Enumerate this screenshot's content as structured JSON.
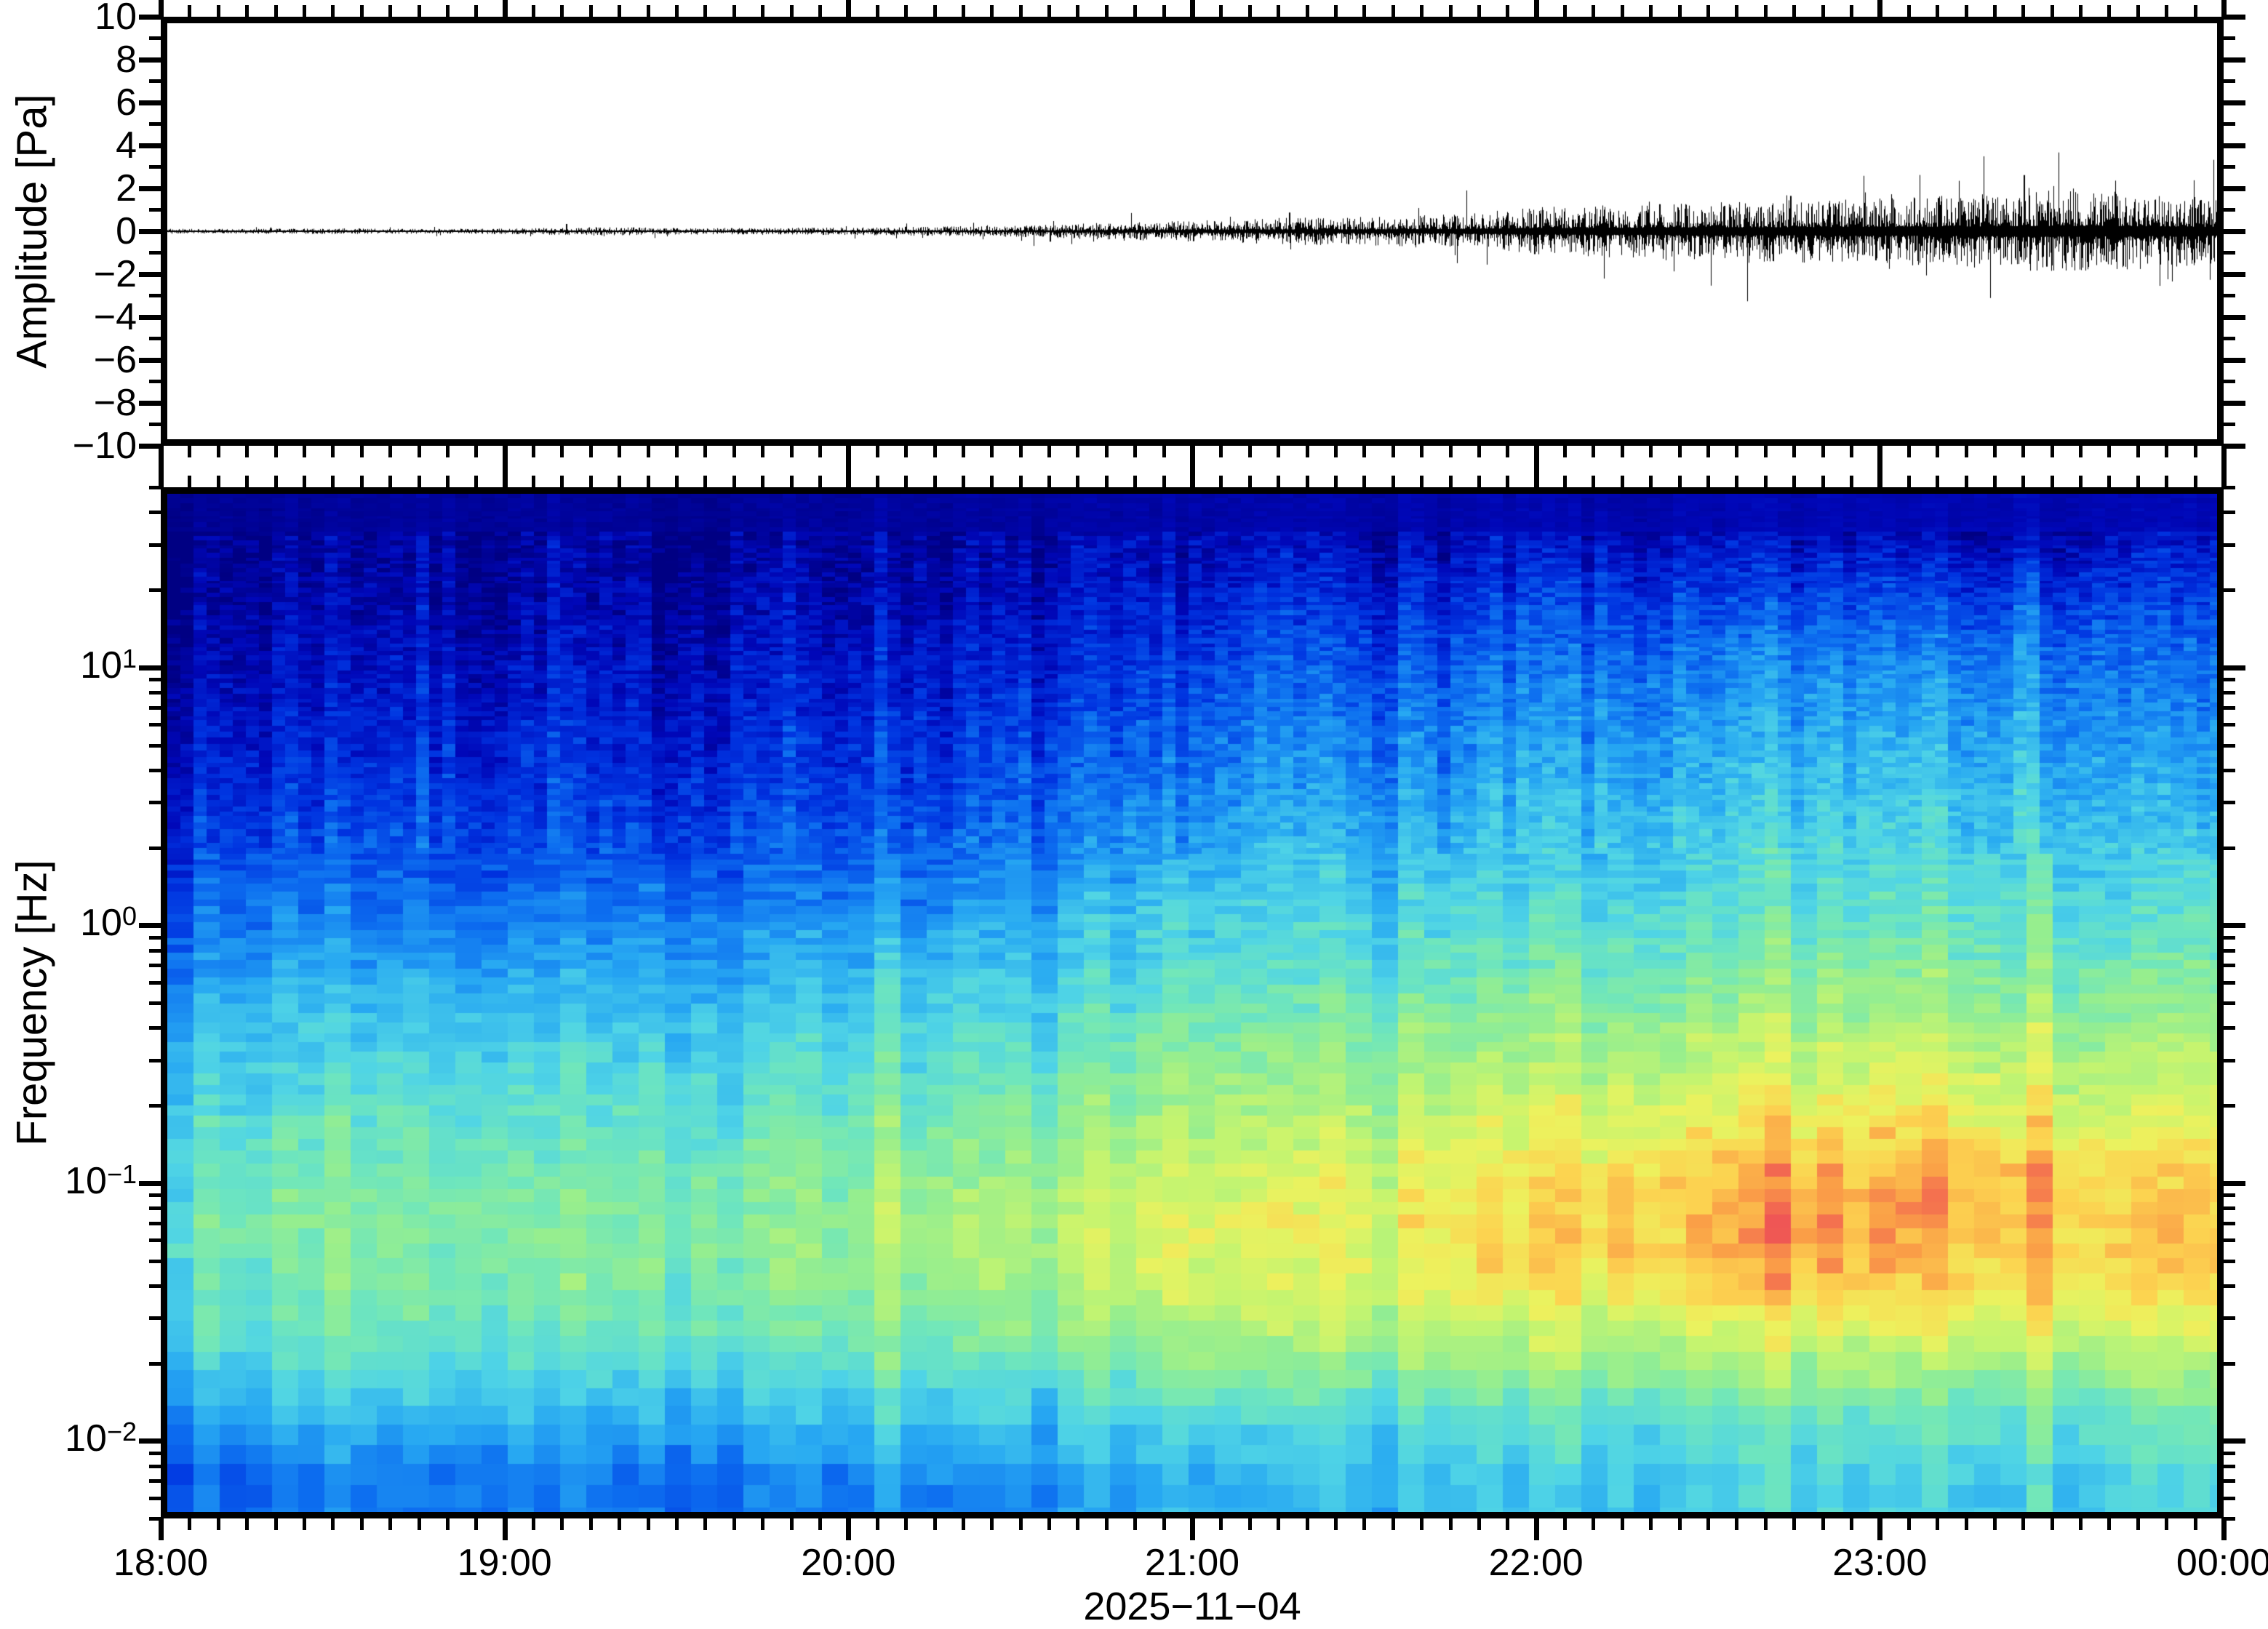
{
  "figure": {
    "background": "#ffffff",
    "frame_color": "#000000"
  },
  "waveform_panel": {
    "ylabel": "Amplitude [Pa]",
    "ylim": [
      -10,
      10
    ],
    "ytick_values": [
      10,
      8,
      6,
      4,
      2,
      0,
      -2,
      -4,
      -6,
      -8,
      -10
    ],
    "ytick_labels": [
      "10",
      "8",
      "6",
      "4",
      "2",
      "0",
      "−2",
      "−4",
      "−6",
      "−8",
      "−10"
    ],
    "line_color": "#000000"
  },
  "spectrogram_panel": {
    "ylabel": "Frequency [Hz]",
    "ylim_hz": [
      0.005,
      50
    ],
    "ytick_values_hz": [
      10,
      1,
      0.1,
      0.01
    ],
    "ytick_labels": [
      "10^1",
      "10^0",
      "10^−1",
      "10^−2"
    ]
  },
  "xaxis": {
    "hour_tick_minutes": [
      0,
      60,
      120,
      180,
      240,
      300,
      360
    ],
    "hour_tick_labels": [
      "18:00",
      "19:00",
      "20:00",
      "21:00",
      "22:00",
      "23:00",
      "00:00"
    ],
    "minor_tick_step_minutes": 5,
    "date_label": "2025−11−04"
  },
  "chart_data": [
    {
      "type": "line",
      "name": "infrasound-waveform",
      "ylabel": "Amplitude [Pa]",
      "ylim": [
        -10,
        10
      ],
      "x_range_minutes": [
        0,
        360
      ],
      "x_start_label": "18:00",
      "line_color": "#000000",
      "envelope": {
        "minutes": [
          0,
          15,
          30,
          45,
          60,
          75,
          90,
          105,
          120,
          135,
          150,
          165,
          180,
          195,
          210,
          225,
          240,
          255,
          270,
          285,
          300,
          315,
          330,
          345,
          360
        ],
        "amplitude_pa": [
          0.05,
          0.05,
          0.06,
          0.05,
          0.06,
          0.09,
          0.07,
          0.07,
          0.08,
          0.1,
          0.12,
          0.18,
          0.22,
          0.28,
          0.3,
          0.35,
          0.5,
          0.55,
          0.6,
          0.65,
          0.7,
          0.75,
          0.85,
          0.8,
          0.7
        ]
      },
      "spikes": [
        {
          "minute": 70,
          "amplitude_pa": 0.35,
          "sign": 1
        },
        {
          "minute": 155,
          "amplitude_pa": 0.5,
          "sign": -1
        },
        {
          "minute": 197,
          "amplitude_pa": 0.9,
          "sign": 1
        },
        {
          "minute": 240,
          "amplitude_pa": 1.1,
          "sign": -1
        },
        {
          "minute": 262,
          "amplitude_pa": 1.3,
          "sign": 1
        },
        {
          "minute": 269,
          "amplitude_pa": 1.2,
          "sign": -1
        },
        {
          "minute": 285,
          "amplitude_pa": 1.7,
          "sign": 1
        },
        {
          "minute": 300,
          "amplitude_pa": 1.4,
          "sign": -1
        },
        {
          "minute": 311,
          "amplitude_pa": 1.6,
          "sign": 1
        },
        {
          "minute": 326,
          "amplitude_pa": 2.7,
          "sign": 1
        },
        {
          "minute": 330,
          "amplitude_pa": 1.7,
          "sign": -1
        },
        {
          "minute": 342,
          "amplitude_pa": 1.9,
          "sign": 1
        },
        {
          "minute": 352,
          "amplitude_pa": 1.6,
          "sign": -1
        },
        {
          "minute": 357,
          "amplitude_pa": 1.5,
          "sign": 1
        }
      ]
    },
    {
      "type": "heatmap",
      "name": "spectrogram",
      "ylabel": "Frequency [Hz]",
      "ylim_hz": [
        0.005,
        50
      ],
      "x_range_minutes": [
        0,
        360
      ],
      "date": "2025-11-04",
      "col_center_minutes": [
        11.25,
        33.75,
        56.25,
        78.75,
        101.25,
        123.75,
        146.25,
        168.75,
        191.25,
        213.75,
        236.25,
        258.75,
        281.25,
        303.75,
        326.25,
        348.75
      ],
      "row_center_hz": [
        37.5,
        21.1,
        11.9,
        6.67,
        3.75,
        2.11,
        1.19,
        0.667,
        0.375,
        0.211,
        0.119,
        0.0667,
        0.0375,
        0.0211,
        0.0119,
        0.00667
      ],
      "values_relative_power": [
        [
          0.03,
          0.03,
          0.04,
          0.03,
          0.03,
          0.04,
          0.04,
          0.05,
          0.05,
          0.06,
          0.06,
          0.06,
          0.07,
          0.07,
          0.08,
          0.07
        ],
        [
          0.05,
          0.05,
          0.06,
          0.05,
          0.06,
          0.06,
          0.07,
          0.09,
          0.12,
          0.14,
          0.15,
          0.16,
          0.18,
          0.2,
          0.22,
          0.16
        ],
        [
          0.08,
          0.09,
          0.1,
          0.08,
          0.1,
          0.11,
          0.12,
          0.15,
          0.2,
          0.22,
          0.24,
          0.26,
          0.3,
          0.32,
          0.34,
          0.24
        ],
        [
          0.12,
          0.13,
          0.14,
          0.12,
          0.14,
          0.15,
          0.17,
          0.2,
          0.26,
          0.28,
          0.3,
          0.32,
          0.36,
          0.38,
          0.4,
          0.3
        ],
        [
          0.16,
          0.17,
          0.18,
          0.16,
          0.18,
          0.19,
          0.22,
          0.26,
          0.32,
          0.34,
          0.36,
          0.38,
          0.42,
          0.44,
          0.45,
          0.36
        ],
        [
          0.21,
          0.22,
          0.23,
          0.21,
          0.23,
          0.25,
          0.28,
          0.32,
          0.38,
          0.4,
          0.42,
          0.44,
          0.47,
          0.49,
          0.5,
          0.42
        ],
        [
          0.28,
          0.3,
          0.31,
          0.29,
          0.31,
          0.33,
          0.36,
          0.4,
          0.44,
          0.46,
          0.48,
          0.5,
          0.53,
          0.55,
          0.56,
          0.48
        ],
        [
          0.36,
          0.38,
          0.4,
          0.38,
          0.4,
          0.42,
          0.44,
          0.47,
          0.5,
          0.52,
          0.55,
          0.57,
          0.6,
          0.62,
          0.63,
          0.55
        ],
        [
          0.44,
          0.46,
          0.48,
          0.46,
          0.47,
          0.49,
          0.51,
          0.54,
          0.57,
          0.6,
          0.63,
          0.66,
          0.69,
          0.71,
          0.72,
          0.63
        ],
        [
          0.5,
          0.52,
          0.54,
          0.52,
          0.53,
          0.55,
          0.58,
          0.61,
          0.64,
          0.67,
          0.71,
          0.74,
          0.77,
          0.79,
          0.8,
          0.7
        ],
        [
          0.55,
          0.57,
          0.59,
          0.56,
          0.58,
          0.61,
          0.64,
          0.68,
          0.71,
          0.74,
          0.79,
          0.83,
          0.87,
          0.89,
          0.9,
          0.8
        ],
        [
          0.58,
          0.61,
          0.63,
          0.6,
          0.62,
          0.65,
          0.68,
          0.72,
          0.75,
          0.78,
          0.83,
          0.88,
          0.92,
          0.93,
          0.93,
          0.84
        ],
        [
          0.56,
          0.59,
          0.62,
          0.58,
          0.6,
          0.63,
          0.66,
          0.69,
          0.72,
          0.75,
          0.79,
          0.83,
          0.86,
          0.87,
          0.87,
          0.8
        ],
        [
          0.5,
          0.53,
          0.55,
          0.52,
          0.54,
          0.56,
          0.58,
          0.6,
          0.62,
          0.64,
          0.66,
          0.68,
          0.7,
          0.71,
          0.72,
          0.68
        ],
        [
          0.38,
          0.42,
          0.44,
          0.4,
          0.42,
          0.44,
          0.45,
          0.46,
          0.48,
          0.5,
          0.52,
          0.53,
          0.55,
          0.56,
          0.57,
          0.54
        ],
        [
          0.27,
          0.3,
          0.33,
          0.28,
          0.3,
          0.33,
          0.34,
          0.35,
          0.38,
          0.42,
          0.44,
          0.45,
          0.47,
          0.48,
          0.5,
          0.46
        ]
      ],
      "colormap": {
        "name": "jet-like",
        "stops": [
          [
            0.0,
            "#000083"
          ],
          [
            0.08,
            "#0007b8"
          ],
          [
            0.18,
            "#0033e0"
          ],
          [
            0.28,
            "#0d6ff0"
          ],
          [
            0.38,
            "#27a8f2"
          ],
          [
            0.48,
            "#4fd4e6"
          ],
          [
            0.56,
            "#6fe6bc"
          ],
          [
            0.64,
            "#95ee8f"
          ],
          [
            0.72,
            "#c3f470"
          ],
          [
            0.79,
            "#ecf25e"
          ],
          [
            0.86,
            "#fcd350"
          ],
          [
            0.92,
            "#fa9f47"
          ],
          [
            0.965,
            "#f4724f"
          ],
          [
            1.0,
            "#ee5056"
          ]
        ]
      }
    }
  ]
}
